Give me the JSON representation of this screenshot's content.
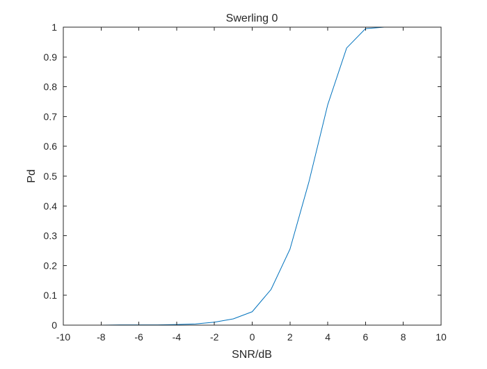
{
  "chart_data": {
    "type": "line",
    "title": "Swerling 0",
    "xlabel": "SNR/dB",
    "ylabel": "Pd",
    "xlim": [
      -10,
      10
    ],
    "ylim": [
      0,
      1
    ],
    "xticks": [
      -10,
      -8,
      -6,
      -4,
      -2,
      0,
      2,
      4,
      6,
      8,
      10
    ],
    "yticks": [
      0,
      0.1,
      0.2,
      0.3,
      0.4,
      0.5,
      0.6,
      0.7,
      0.8,
      0.9,
      1
    ],
    "xtick_labels": [
      "-10",
      "-8",
      "-6",
      "-4",
      "-2",
      "0",
      "2",
      "4",
      "6",
      "8",
      "10"
    ],
    "ytick_labels": [
      "0",
      "0.1",
      "0.2",
      "0.3",
      "0.4",
      "0.5",
      "0.6",
      "0.7",
      "0.8",
      "0.9",
      "1"
    ],
    "grid": false,
    "box": true,
    "series": [
      {
        "color": "#0072BD",
        "x": [
          -10,
          -9,
          -8,
          -7,
          -6,
          -5,
          -4,
          -3,
          -2,
          -1,
          0,
          1,
          2,
          3,
          4,
          5,
          6,
          7,
          8,
          9,
          10
        ],
        "y": [
          0,
          0,
          0,
          0.001,
          0.001,
          0.001,
          0.002,
          0.004,
          0.01,
          0.021,
          0.045,
          0.12,
          0.255,
          0.48,
          0.74,
          0.93,
          0.995,
          1,
          1,
          1,
          1
        ]
      }
    ]
  }
}
